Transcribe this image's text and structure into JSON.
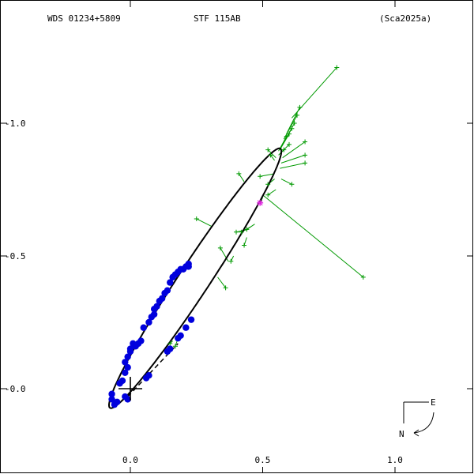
{
  "header": {
    "wds_id": "WDS 01234+5809",
    "discoverer": "STF 115AB",
    "reference": "(Sca2025a)"
  },
  "chart_data": {
    "type": "scatter",
    "title": "",
    "xlabel": "",
    "ylabel": "",
    "xlim": [
      -0.5,
      1.3
    ],
    "ylim": [
      -0.3,
      1.45
    ],
    "x_ticks": [
      {
        "value": 0.0,
        "label": "0.0"
      },
      {
        "value": 0.5,
        "label": "0.5"
      },
      {
        "value": 1.0,
        "label": "1.0"
      }
    ],
    "y_ticks": [
      {
        "value": 0.0,
        "label": "-0.0"
      },
      {
        "value": 0.5,
        "label": "-0.5"
      },
      {
        "value": 1.0,
        "label": "-1.0"
      }
    ],
    "grid": false,
    "colors": {
      "orbit": "#000000",
      "residual_line": "#009900",
      "plus_obs": "#009900",
      "speckle_obs": "#0000dd",
      "special_obs": "#dd22dd",
      "primary": "#000000"
    },
    "orbit_ellipse": {
      "center": [
        0.245,
        0.416
      ],
      "semi_major_axis": 0.585,
      "semi_minor_axis": 0.058,
      "angle_deg": 56.6
    },
    "primary_star": [
      0.0,
      0.0
    ],
    "node_line": {
      "from": [
        -0.01,
        -0.03
      ],
      "to": [
        0.18,
        0.17
      ]
    },
    "series": [
      {
        "marker": "plus",
        "points": [
          [
            0.78,
            1.21
          ],
          [
            0.64,
            1.06
          ],
          [
            0.63,
            1.03
          ],
          [
            0.62,
            1.0
          ],
          [
            0.61,
            0.98
          ],
          [
            0.6,
            0.96
          ],
          [
            0.59,
            0.95
          ],
          [
            0.6,
            0.92
          ],
          [
            0.58,
            0.9
          ],
          [
            0.66,
            0.93
          ],
          [
            0.66,
            0.88
          ],
          [
            0.66,
            0.85
          ],
          [
            0.52,
            0.9
          ],
          [
            0.53,
            0.88
          ],
          [
            0.41,
            0.81
          ],
          [
            0.49,
            0.8
          ],
          [
            0.52,
            0.77
          ],
          [
            0.61,
            0.77
          ],
          [
            0.52,
            0.73
          ],
          [
            0.88,
            0.42
          ],
          [
            0.25,
            0.64
          ],
          [
            0.44,
            0.6
          ],
          [
            0.42,
            0.59
          ],
          [
            0.4,
            0.59
          ],
          [
            0.43,
            0.54
          ],
          [
            0.34,
            0.53
          ],
          [
            0.38,
            0.48
          ],
          [
            0.36,
            0.38
          ],
          [
            0.17,
            0.16
          ],
          [
            0.15,
            0.17
          ],
          [
            0.14,
            0.14
          ]
        ],
        "fitted": [
          [
            0.61,
            1.02
          ],
          [
            0.59,
            0.96
          ],
          [
            0.58,
            0.94
          ],
          [
            0.575,
            0.92
          ],
          [
            0.57,
            0.91
          ],
          [
            0.565,
            0.9
          ],
          [
            0.56,
            0.895
          ],
          [
            0.565,
            0.885
          ],
          [
            0.56,
            0.88
          ],
          [
            0.575,
            0.87
          ],
          [
            0.57,
            0.85
          ],
          [
            0.565,
            0.83
          ],
          [
            0.55,
            0.87
          ],
          [
            0.545,
            0.86
          ],
          [
            0.43,
            0.78
          ],
          [
            0.545,
            0.81
          ],
          [
            0.545,
            0.79
          ],
          [
            0.57,
            0.79
          ],
          [
            0.55,
            0.75
          ],
          [
            0.5,
            0.73
          ],
          [
            0.31,
            0.61
          ],
          [
            0.47,
            0.62
          ],
          [
            0.455,
            0.61
          ],
          [
            0.445,
            0.6
          ],
          [
            0.44,
            0.57
          ],
          [
            0.37,
            0.48
          ],
          [
            0.39,
            0.5
          ],
          [
            0.33,
            0.42
          ],
          [
            0.18,
            0.19
          ],
          [
            0.16,
            0.18
          ],
          [
            0.15,
            0.16
          ]
        ]
      },
      {
        "marker": "filled-circle",
        "points": [
          [
            -0.07,
            -0.04
          ],
          [
            -0.06,
            -0.06
          ],
          [
            -0.07,
            -0.02
          ],
          [
            -0.05,
            -0.05
          ],
          [
            -0.04,
            0.02
          ],
          [
            -0.03,
            0.03
          ],
          [
            -0.02,
            0.06
          ],
          [
            -0.01,
            0.08
          ],
          [
            -0.02,
            0.1
          ],
          [
            -0.01,
            0.12
          ],
          [
            0.0,
            0.14
          ],
          [
            0.0,
            0.15
          ],
          [
            0.01,
            0.17
          ],
          [
            0.02,
            0.16
          ],
          [
            0.03,
            0.17
          ],
          [
            0.04,
            0.18
          ],
          [
            0.05,
            0.23
          ],
          [
            0.07,
            0.25
          ],
          [
            0.08,
            0.27
          ],
          [
            0.09,
            0.28
          ],
          [
            0.09,
            0.3
          ],
          [
            0.1,
            0.31
          ],
          [
            0.11,
            0.33
          ],
          [
            0.12,
            0.34
          ],
          [
            0.13,
            0.36
          ],
          [
            0.14,
            0.37
          ],
          [
            0.15,
            0.4
          ],
          [
            0.16,
            0.42
          ],
          [
            0.17,
            0.43
          ],
          [
            0.18,
            0.44
          ],
          [
            0.19,
            0.45
          ],
          [
            0.2,
            0.45
          ],
          [
            0.21,
            0.46
          ],
          [
            0.22,
            0.46
          ],
          [
            0.22,
            0.47
          ],
          [
            0.23,
            0.26
          ],
          [
            0.21,
            0.23
          ],
          [
            0.19,
            0.2
          ],
          [
            0.18,
            0.19
          ],
          [
            0.15,
            0.15
          ],
          [
            0.14,
            0.14
          ],
          [
            0.07,
            0.05
          ],
          [
            0.06,
            0.04
          ],
          [
            -0.02,
            -0.03
          ],
          [
            -0.01,
            -0.04
          ]
        ]
      },
      {
        "marker": "star",
        "points": [
          [
            0.49,
            0.7
          ]
        ],
        "fitted": [
          [
            0.5,
            0.72
          ]
        ]
      }
    ]
  },
  "compass": {
    "east_label": "E",
    "north_label": "N"
  }
}
